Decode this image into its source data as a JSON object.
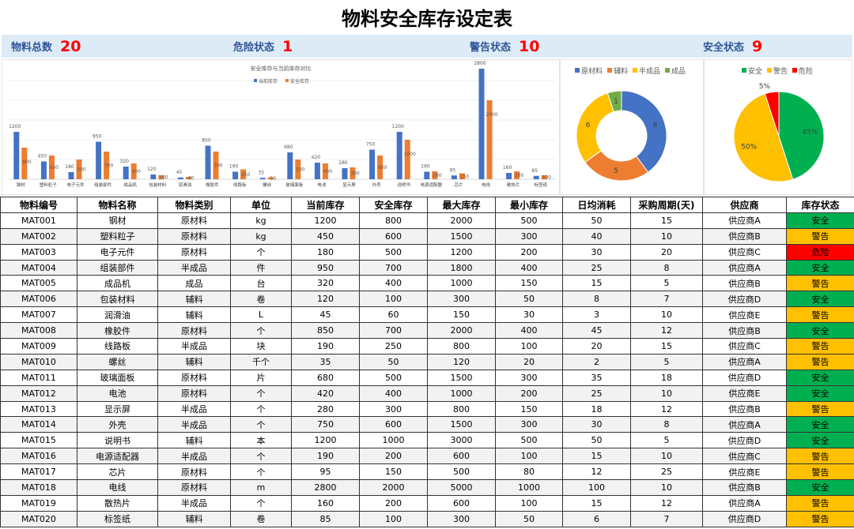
{
  "title": "物料安全库存设定表",
  "stats": [
    {
      "label": "物料总数",
      "value": "20"
    },
    {
      "label": "危险状态",
      "value": "1"
    },
    {
      "label": "警告状态",
      "value": "10"
    },
    {
      "label": "安全状态",
      "value": "9"
    }
  ],
  "colors": {
    "blue": "#4472c4",
    "orange": "#ed7d31",
    "yellow": "#ffc000",
    "green": "#70ad47",
    "safe": "#00b050",
    "warn": "#ffc000",
    "danger": "#ff0000"
  },
  "chart_data": [
    {
      "type": "bar",
      "title": "安全库存与当前库存对比",
      "ylim": [
        0,
        3000
      ],
      "legend": "top-right",
      "categories": [
        "钢材",
        "塑料粒子",
        "电子元件",
        "组装部件",
        "成品机",
        "包装材料",
        "润滑油",
        "橡胶件",
        "线路板",
        "螺丝",
        "玻璃面板",
        "电池",
        "显示屏",
        "外壳",
        "说明书",
        "电源适配器",
        "芯片",
        "电线",
        "散热片",
        "标签纸"
      ],
      "series": [
        {
          "name": "当前库存",
          "values": [
            1200,
            450,
            180,
            950,
            320,
            120,
            45,
            850,
            190,
            35,
            680,
            420,
            280,
            750,
            1200,
            190,
            95,
            2800,
            160,
            85
          ]
        },
        {
          "name": "安全库存",
          "values": [
            800,
            600,
            500,
            700,
            400,
            100,
            60,
            700,
            250,
            50,
            500,
            400,
            300,
            600,
            1000,
            200,
            150,
            2000,
            200,
            100
          ]
        }
      ]
    },
    {
      "type": "pie",
      "subtype": "donut",
      "legend": "top",
      "labels": [
        "原材料",
        "辅料",
        "半成品",
        "成品"
      ],
      "values": [
        8,
        5,
        6,
        1
      ]
    },
    {
      "type": "pie",
      "legend": "top",
      "labels": [
        "安全",
        "警告",
        "危险"
      ],
      "values": [
        45,
        50,
        5
      ],
      "value_labels": [
        "45%",
        "50%",
        "5%"
      ]
    }
  ],
  "table": {
    "headers": [
      "物料编号",
      "物料名称",
      "物料类别",
      "单位",
      "当前库存",
      "安全库存",
      "最大库存",
      "最小库存",
      "日均消耗",
      "采购周期(天)",
      "供应商",
      "库存状态"
    ],
    "rows": [
      [
        "MAT001",
        "钢材",
        "原材料",
        "kg",
        "1200",
        "800",
        "2000",
        "500",
        "50",
        "15",
        "供应商A",
        "安全"
      ],
      [
        "MAT002",
        "塑料粒子",
        "原材料",
        "kg",
        "450",
        "600",
        "1500",
        "300",
        "40",
        "10",
        "供应商B",
        "警告"
      ],
      [
        "MAT003",
        "电子元件",
        "原材料",
        "个",
        "180",
        "500",
        "1200",
        "200",
        "30",
        "20",
        "供应商C",
        "危险"
      ],
      [
        "MAT004",
        "组装部件",
        "半成品",
        "件",
        "950",
        "700",
        "1800",
        "400",
        "25",
        "8",
        "供应商A",
        "安全"
      ],
      [
        "MAT005",
        "成品机",
        "成品",
        "台",
        "320",
        "400",
        "1000",
        "150",
        "15",
        "5",
        "供应商B",
        "警告"
      ],
      [
        "MAT006",
        "包装材料",
        "辅料",
        "卷",
        "120",
        "100",
        "300",
        "50",
        "8",
        "7",
        "供应商D",
        "安全"
      ],
      [
        "MAT007",
        "润滑油",
        "辅料",
        "L",
        "45",
        "60",
        "150",
        "30",
        "3",
        "10",
        "供应商E",
        "警告"
      ],
      [
        "MAT008",
        "橡胶件",
        "原材料",
        "个",
        "850",
        "700",
        "2000",
        "400",
        "45",
        "12",
        "供应商B",
        "安全"
      ],
      [
        "MAT009",
        "线路板",
        "半成品",
        "块",
        "190",
        "250",
        "800",
        "100",
        "20",
        "15",
        "供应商C",
        "警告"
      ],
      [
        "MAT010",
        "螺丝",
        "辅料",
        "千个",
        "35",
        "50",
        "120",
        "20",
        "2",
        "5",
        "供应商A",
        "警告"
      ],
      [
        "MAT011",
        "玻璃面板",
        "原材料",
        "片",
        "680",
        "500",
        "1500",
        "300",
        "35",
        "18",
        "供应商D",
        "安全"
      ],
      [
        "MAT012",
        "电池",
        "原材料",
        "个",
        "420",
        "400",
        "1000",
        "200",
        "25",
        "10",
        "供应商E",
        "安全"
      ],
      [
        "MAT013",
        "显示屏",
        "半成品",
        "个",
        "280",
        "300",
        "800",
        "150",
        "18",
        "12",
        "供应商B",
        "警告"
      ],
      [
        "MAT014",
        "外壳",
        "半成品",
        "个",
        "750",
        "600",
        "1500",
        "300",
        "30",
        "8",
        "供应商A",
        "安全"
      ],
      [
        "MAT015",
        "说明书",
        "辅料",
        "本",
        "1200",
        "1000",
        "3000",
        "500",
        "50",
        "5",
        "供应商D",
        "安全"
      ],
      [
        "MAT016",
        "电源适配器",
        "半成品",
        "个",
        "190",
        "200",
        "600",
        "100",
        "15",
        "10",
        "供应商C",
        "警告"
      ],
      [
        "MAT017",
        "芯片",
        "原材料",
        "个",
        "95",
        "150",
        "500",
        "80",
        "12",
        "25",
        "供应商E",
        "警告"
      ],
      [
        "MAT018",
        "电线",
        "原材料",
        "m",
        "2800",
        "2000",
        "5000",
        "1000",
        "100",
        "10",
        "供应商B",
        "安全"
      ],
      [
        "MAT019",
        "散热片",
        "半成品",
        "个",
        "160",
        "200",
        "600",
        "100",
        "15",
        "12",
        "供应商A",
        "警告"
      ],
      [
        "MAT020",
        "标签纸",
        "辅料",
        "卷",
        "85",
        "100",
        "300",
        "50",
        "6",
        "7",
        "供应商D",
        "警告"
      ]
    ]
  }
}
